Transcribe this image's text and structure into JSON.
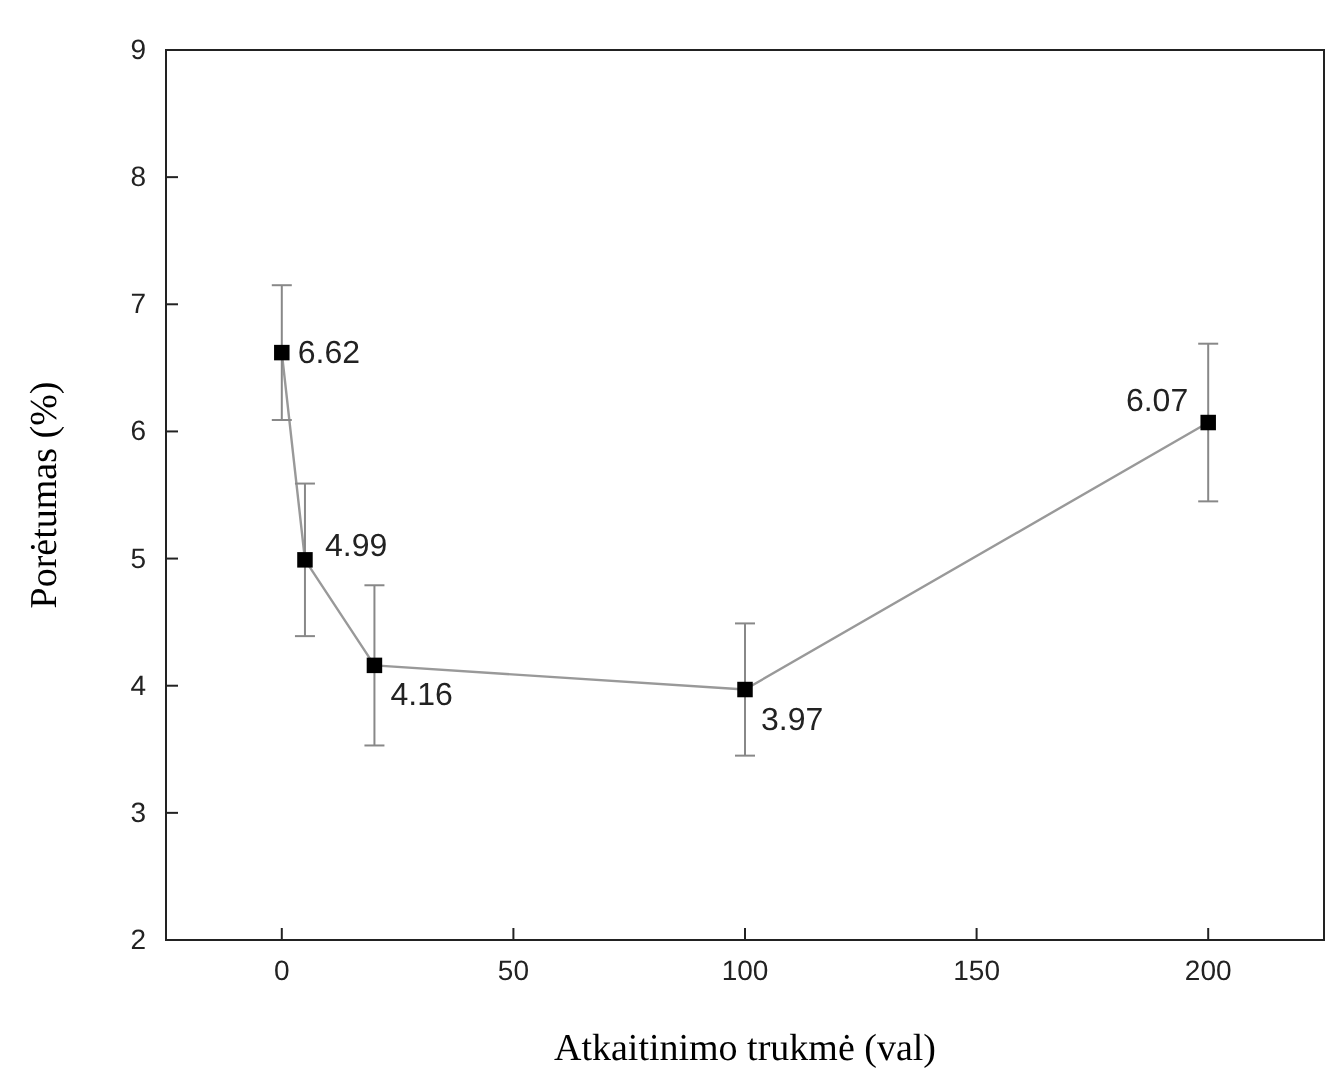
{
  "chart_data": {
    "type": "line",
    "xlabel": "Atkaitinimo trukmė (val)",
    "ylabel": "Porėtumas (%)",
    "x": [
      0,
      5,
      20,
      100,
      200
    ],
    "series": [
      {
        "color": "#000000",
        "values": [
          6.62,
          4.99,
          4.16,
          3.97,
          6.07
        ],
        "errors": [
          0.53,
          0.6,
          0.63,
          0.52,
          0.62
        ]
      }
    ],
    "xlim": [
      -25,
      225
    ],
    "xticks": [
      0,
      50,
      100,
      150,
      200
    ],
    "ylim": [
      2,
      9
    ],
    "yticks": [
      2,
      3,
      4,
      5,
      6,
      7,
      8,
      9
    ],
    "marker": "square",
    "line_style": "solid",
    "data_labels": true
  }
}
